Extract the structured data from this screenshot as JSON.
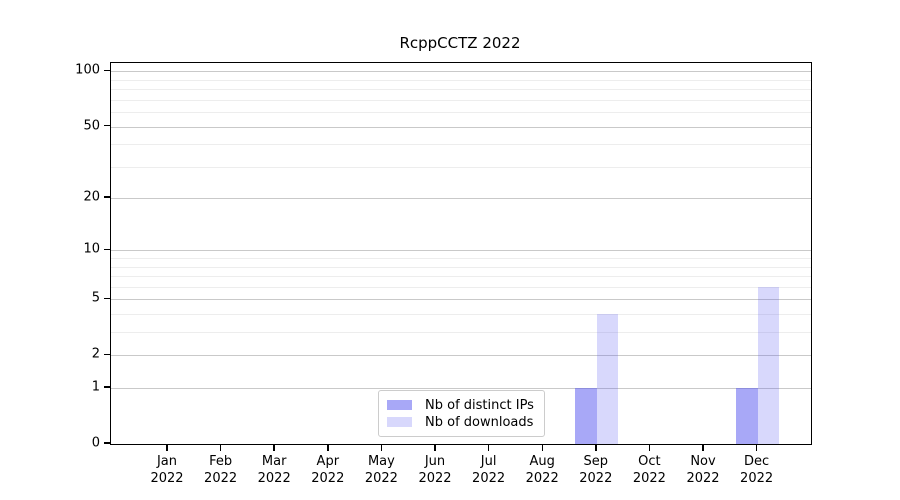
{
  "chart_data": {
    "type": "bar",
    "title": "RcppCCTZ 2022",
    "categories": [
      "Jan",
      "Feb",
      "Mar",
      "Apr",
      "May",
      "Jun",
      "Jul",
      "Aug",
      "Sep",
      "Oct",
      "Nov",
      "Dec"
    ],
    "category_year": "2022",
    "series": [
      {
        "name": "Nb of distinct IPs",
        "color": "rgba(85,85,240,0.51)",
        "values": [
          0,
          0,
          0,
          0,
          0,
          0,
          0,
          0,
          1,
          0,
          0,
          1
        ]
      },
      {
        "name": "Nb of downloads",
        "color": "rgba(85,85,240,0.23)",
        "values": [
          0,
          0,
          0,
          0,
          0,
          0,
          0,
          0,
          4,
          0,
          0,
          6
        ]
      }
    ],
    "y_scale": "log1p",
    "y_ticks": [
      0,
      1,
      2,
      5,
      10,
      20,
      50,
      100
    ],
    "y_minor_gridlines": [
      3,
      4,
      6,
      7,
      8,
      9,
      30,
      40,
      60,
      70,
      80,
      90
    ],
    "ylim": [
      0,
      111
    ],
    "xlabel": "",
    "ylabel": "",
    "grid": "horizontal",
    "legend_position": "inside-bottom-center",
    "colors": {
      "axis": "#000000",
      "grid_major": "#c9c9c9",
      "grid_minor": "#ededed",
      "background": "#ffffff"
    }
  }
}
